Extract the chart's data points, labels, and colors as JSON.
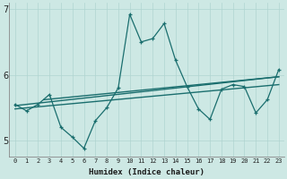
{
  "xlabel": "Humidex (Indice chaleur)",
  "xlim": [
    -0.5,
    23.5
  ],
  "ylim": [
    4.75,
    7.1
  ],
  "yticks": [
    5,
    6,
    7
  ],
  "xticks": [
    0,
    1,
    2,
    3,
    4,
    5,
    6,
    7,
    8,
    9,
    10,
    11,
    12,
    13,
    14,
    15,
    16,
    17,
    18,
    19,
    20,
    21,
    22,
    23
  ],
  "bg_color": "#cde8e4",
  "grid_color": "#b0d4d0",
  "line_color": "#1a6e6e",
  "zigzag_x": [
    0,
    1,
    2,
    3,
    4,
    5,
    6,
    7,
    8,
    9,
    10,
    11,
    12,
    13,
    14,
    15,
    16,
    17,
    18,
    19,
    20,
    21,
    22,
    23
  ],
  "zigzag_y": [
    5.55,
    5.45,
    5.55,
    5.7,
    5.2,
    5.05,
    4.88,
    5.3,
    5.5,
    5.8,
    6.92,
    6.5,
    6.55,
    6.78,
    6.22,
    5.82,
    5.48,
    5.32,
    5.78,
    5.85,
    5.82,
    5.42,
    5.62,
    6.08
  ],
  "trend1_x": [
    0,
    23
  ],
  "trend1_y": [
    5.53,
    5.97
  ],
  "trend2_x": [
    2.5,
    23
  ],
  "trend2_y": [
    5.62,
    5.97
  ],
  "trend3_x": [
    0,
    23
  ],
  "trend3_y": [
    5.48,
    5.85
  ]
}
